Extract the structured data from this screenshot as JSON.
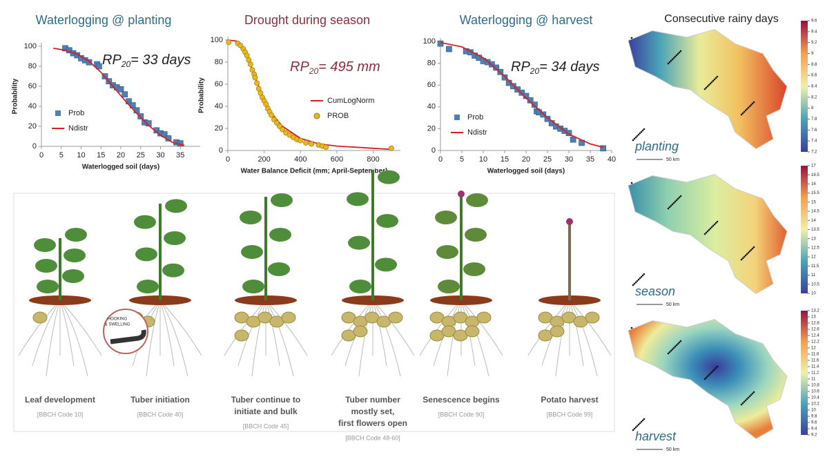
{
  "chart_data": [
    {
      "type": "scatter",
      "title": "Waterlogging @ planting",
      "title_color": "#2e6b8a",
      "xlabel": "Waterlogged soil (days)",
      "ylabel": "Probability",
      "annotation": {
        "text": "RP",
        "sub": "20",
        "rest": "= 33 days"
      },
      "xlim": [
        0,
        40
      ],
      "xticks": [
        0,
        5,
        10,
        15,
        20,
        25,
        30,
        35
      ],
      "ylim": [
        0,
        100
      ],
      "yticks": [
        0,
        20,
        40,
        60,
        80,
        100
      ],
      "legend": "lower left",
      "series": [
        {
          "name": "Prob",
          "mode": "markers",
          "marker": "square",
          "color": "#4f7fb5",
          "x": [
            6,
            7,
            8,
            9,
            10,
            11,
            12,
            14,
            14.5,
            16,
            17,
            18,
            19,
            20,
            21,
            22,
            23,
            24,
            25,
            26,
            27,
            29,
            30,
            31,
            32,
            34,
            35
          ],
          "values": [
            98,
            96,
            93,
            91,
            88,
            86,
            84,
            82,
            80,
            70,
            65,
            61,
            59,
            57,
            52,
            45,
            41,
            36,
            30,
            24,
            23,
            16,
            13,
            12,
            8,
            4,
            3
          ]
        },
        {
          "name": "Ndistr",
          "mode": "line",
          "color": "#d62020",
          "x": [
            3,
            6,
            9,
            12,
            15,
            18,
            21,
            24,
            27,
            30,
            33,
            36
          ],
          "values": [
            98,
            96,
            92,
            85,
            74,
            60,
            46,
            33,
            21,
            11,
            4,
            1
          ]
        }
      ]
    },
    {
      "type": "scatter",
      "title": "Drought during season",
      "title_color": "#8b2e3a",
      "xlabel": "Water Balance Deficit (mm; April-September)",
      "ylabel": "Probability",
      "annotation": {
        "text": "RP",
        "sub": "20",
        "rest": "= 495 mm"
      },
      "xlim": [
        0,
        950
      ],
      "xticks": [
        0,
        200,
        400,
        600,
        800
      ],
      "ylim": [
        0,
        100
      ],
      "yticks": [
        0,
        20,
        40,
        60,
        80,
        100
      ],
      "legend": "center right",
      "series": [
        {
          "name": "CumLogNorm",
          "mode": "line",
          "color": "#d62020",
          "x": [
            0,
            50,
            100,
            150,
            200,
            250,
            300,
            400,
            500,
            600,
            800,
            900
          ],
          "values": [
            100,
            99,
            88,
            66,
            46,
            32,
            22,
            11,
            6,
            4,
            2,
            1
          ]
        },
        {
          "name": "PROB",
          "mode": "markers",
          "marker": "circle",
          "color": "#e8b820",
          "x": [
            5,
            55,
            70,
            85,
            95,
            105,
            115,
            125,
            135,
            145,
            150,
            160,
            170,
            180,
            190,
            200,
            210,
            220,
            230,
            240,
            255,
            270,
            285,
            300,
            320,
            340,
            360,
            380,
            400,
            430,
            460,
            500,
            520,
            540,
            900
          ],
          "values": [
            98,
            97,
            95,
            92,
            89,
            86,
            82,
            78,
            73,
            69,
            66,
            61,
            56,
            52,
            48,
            45,
            42,
            38,
            35,
            32,
            28,
            25,
            22,
            19,
            16,
            14,
            12,
            10,
            9,
            7,
            6,
            5,
            4,
            3,
            2
          ]
        }
      ]
    },
    {
      "type": "scatter",
      "title": "Waterlogging @ harvest",
      "title_color": "#2e6b8a",
      "xlabel": "Waterlogged soil (days)",
      "annotation": {
        "text": "RP",
        "sub": "20",
        "rest": "= 34 days"
      },
      "xlim": [
        0,
        40
      ],
      "xticks": [
        0,
        5,
        10,
        15,
        20,
        25,
        30,
        35,
        40
      ],
      "ylim": [
        0,
        100
      ],
      "yticks": [
        0,
        20,
        40,
        60,
        80,
        100
      ],
      "legend": "lower left",
      "series": [
        {
          "name": "Prob",
          "mode": "markers",
          "marker": "square",
          "color": "#4f7fb5",
          "x": [
            0,
            2,
            6,
            7,
            8,
            9,
            10,
            11,
            12,
            13,
            14,
            15,
            16,
            17,
            18,
            19,
            20,
            21,
            22,
            22.5,
            23,
            24,
            25,
            26,
            27,
            28,
            29,
            30,
            31,
            33,
            38
          ],
          "values": [
            98,
            93,
            91,
            90,
            87,
            85,
            82,
            81,
            79,
            76,
            72,
            67,
            62,
            59,
            56,
            53,
            50,
            46,
            42,
            36,
            35,
            33,
            29,
            25,
            22,
            20,
            18,
            16,
            10,
            7,
            2
          ]
        },
        {
          "name": "Ndistr",
          "mode": "line",
          "color": "#d62020",
          "x": [
            0,
            5,
            10,
            15,
            20,
            25,
            30,
            35,
            38
          ],
          "values": [
            99,
            95,
            85,
            68,
            48,
            30,
            15,
            6,
            3
          ]
        }
      ]
    }
  ],
  "stages": [
    {
      "name": [
        "Leaf development"
      ],
      "code": "[BBCH Code 10]"
    },
    {
      "name": [
        "Tuber initiation"
      ],
      "code": "[BBCH Code 40]",
      "inset": [
        "HOOKING",
        "& SWELLING"
      ]
    },
    {
      "name": [
        "Tuber continue to",
        "initiate and bulk"
      ],
      "code": "[BBCH Code 45]"
    },
    {
      "name": [
        "Tuber number",
        "mostly set,",
        "first flowers open"
      ],
      "code": "[BBCH Code 48-60]"
    },
    {
      "name": [
        "Senescence begins"
      ],
      "code": "[BBCH Code 90]"
    },
    {
      "name": [
        "Potato harvest"
      ],
      "code": "[BBCH Code 99]"
    }
  ],
  "maps": {
    "title": "Consecutive rainy days",
    "scale": "50 km",
    "panels": [
      {
        "label": "planting",
        "ticks": [
          7.2,
          7.4,
          7.6,
          7.8,
          8,
          8.2,
          8.4,
          8.6,
          8.8,
          9,
          9.2,
          9.4,
          9.6
        ]
      },
      {
        "label": "season",
        "ticks": [
          10,
          10.5,
          11,
          11.5,
          12,
          12.5,
          13,
          13.5,
          14,
          14.5,
          15,
          15.5,
          16,
          16.5,
          17
        ]
      },
      {
        "label": "harvest",
        "ticks": [
          9.2,
          9.4,
          9.6,
          9.8,
          10,
          10.2,
          10.4,
          10.6,
          10.8,
          11,
          11.2,
          11.4,
          11.6,
          11.8,
          12,
          12.2,
          12.4,
          12.6,
          12.8,
          13,
          13.2
        ]
      }
    ]
  }
}
